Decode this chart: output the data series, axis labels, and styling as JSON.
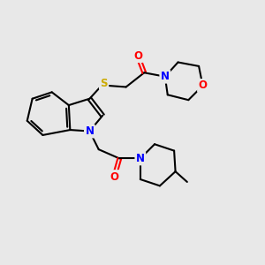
{
  "bg_color": "#e8e8e8",
  "bond_color": "#000000",
  "atom_colors": {
    "N": "#0000ff",
    "O": "#ff0000",
    "S": "#ccaa00",
    "C": "#000000"
  },
  "bond_width": 1.5,
  "font_size_atom": 8.5,
  "xlim": [
    0,
    10
  ],
  "ylim": [
    0,
    10
  ]
}
